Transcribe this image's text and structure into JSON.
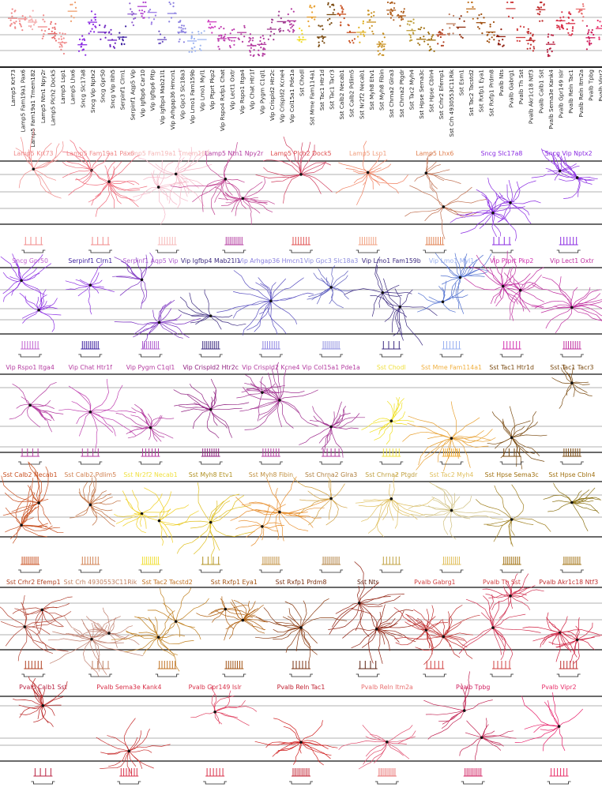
{
  "colors": {
    "lamp5": "#f08a8a",
    "sncg": "#8a2be2",
    "serpinf1": "#3c1ea0",
    "vip_light": "#9a7be6",
    "vip": "#b43ca0",
    "vip_pink": "#e040c8",
    "sst_yellow": "#f0dc28",
    "sst_orange": "#e88c28",
    "sst_brown": "#7a4a10",
    "sst_dark": "#5a2a0a",
    "pvalb": "#d83048",
    "pvalb_pink": "#e8306a"
  },
  "top_panel": {
    "x_labels": [
      "Lamp5 Krt73",
      "Lamp5 Fam19a1 Pax6",
      "Lamp5 Fam19a1 Tmem182",
      "Lamp5 Ntn1 Npy2r",
      "Lamp5 Plch2 Dock5",
      "Lamp5 Lsp1",
      "Lamp5 Lhx6",
      "Sncg Slc17a8",
      "Sncg Vip Nptx2",
      "Sncg Gpr50",
      "Sncg Vip Itih5",
      "Serpinf1 Clrn1",
      "Serpinf1 Aqp5 Vip",
      "Vip Igfbp6 Car10",
      "Vip Igfbp6 Pltp",
      "Vip Igfbp4 Mab21l1",
      "Vip Arhgap36 Hmcn1",
      "Vip Gpc3 Slc18a3",
      "Vip Lmo1 Fam159b",
      "Vip Lmo1 Myl1",
      "Vip Ptprt Pkp2",
      "Vip Rspo4 Rxfp1 Chat",
      "Vip Lect1 Oxtr",
      "Vip Rspo1 Itga4",
      "Vip Chat Htr1f",
      "Vip Pygm C1ql1",
      "Vip Crispld2 Htr2c",
      "Vip Crispld2 Kcne4",
      "Vip Col15a1 Pde1a",
      "Sst Chodl",
      "Sst Mme Fam114a1",
      "Sst Tac1 Htr1d",
      "Sst Tac1 Tacr3",
      "Sst Calb2 Necab1",
      "Sst Calb2 Pdlim5",
      "Sst Nr2f2 Necab1",
      "Sst Myh8 Etv1",
      "Sst Myh8 Fibin",
      "Sst Chrna2 Glra3",
      "Sst Chrna2 Ptgdr",
      "Sst Tac2 Myh4",
      "Sst Hpse Sema3c",
      "Sst Hpse Cbln4",
      "Sst Crhr2 Efemp1",
      "Sst Crh 4930553C11Rik",
      "Sst Esm1",
      "Sst Tac2 Tacstd2",
      "Sst Rxfp1 Eya1",
      "Sst Rxfp1 Prdm8",
      "Pvalb Nts",
      "Pvalb Gabrg1",
      "Pvalb Th Sst",
      "Pvalb Akr1c18 Ntf3",
      "Pvalb Calb1 Sst",
      "Pvalb Sema3e Kank4",
      "Pvalb Gpr149 Islr",
      "Pvalb Reln Tac1",
      "Pvalb Reln Itm2a",
      "Pvalb Tpbg",
      "Pvalb Vipr2"
    ],
    "label_colors": [
      "#f08a8a",
      "#f08a8a",
      "#f5b0b0",
      "#f08a8a",
      "#e86a6a",
      "#f08a8a",
      "#f0a070",
      "#8a2be2",
      "#8a2be2",
      "#6a20c0",
      "#6a20c0",
      "#3c1ea0",
      "#9060d0",
      "#b040d0",
      "#9a7be6",
      "#6a50c0",
      "#8a80e0",
      "#8a80e0",
      "#9ab0f0",
      "#a0b8f0",
      "#d040c0",
      "#c040b0",
      "#c040b0",
      "#b43ca0",
      "#b43ca0",
      "#b43ca0",
      "#a03c90",
      "#a03c90",
      "#b43ca0",
      "#f0dc28",
      "#e8a030",
      "#7a4a10",
      "#7a4a10",
      "#c85020",
      "#c85020",
      "#e0b020",
      "#c89020",
      "#c89020",
      "#b06020",
      "#b06020",
      "#c0a040",
      "#a07010",
      "#a07010",
      "#b04020",
      "#c08060",
      "#903010",
      "#c07020",
      "#a05010",
      "#a05010",
      "#902010",
      "#d04040",
      "#d04040",
      "#c03030",
      "#c03030",
      "#b82040",
      "#d83048",
      "#d83048",
      "#e87070",
      "#d02060",
      "#e8306a"
    ]
  },
  "cell_types": [
    {
      "row": 0,
      "name": "Lamp5 Krt73",
      "color": "#f08a8a",
      "morph": "#f08a8a"
    },
    {
      "row": 0,
      "name": "Lamp5 Fam19a1 Pax6",
      "color": "#f08a8a",
      "morph": "#f06a7a"
    },
    {
      "row": 0,
      "name": "Lamp5 Fam19a1 Tmem182",
      "color": "#f5b8b8",
      "morph": "#f5b8c8"
    },
    {
      "row": 0,
      "name": "Lamp5 Ntn1 Npy2r",
      "color": "#b43ca0",
      "morph": "#c04090"
    },
    {
      "row": 0,
      "name": "Lamp5 Plch2 Dock5",
      "color": "#e05050",
      "morph": "#d04060"
    },
    {
      "row": 0,
      "name": "Lamp5 Lsp1",
      "color": "#f0a080",
      "morph": "#f08060"
    },
    {
      "row": 0,
      "name": "Lamp5 Lhx6",
      "color": "#e08050",
      "morph": "#c07050"
    },
    {
      "row": 0,
      "name": "Sncg Slc17a8",
      "color": "#8a2be2",
      "morph": "#8a2be2"
    },
    {
      "row": 0,
      "name": "Sncg Vip Nptx2",
      "color": "#8a2be2",
      "morph": "#8a2be2"
    },
    {
      "row": 1,
      "name": "Sncg Gpr50",
      "color": "#c060d0",
      "morph": "#8a2be2"
    },
    {
      "row": 1,
      "name": "Serpinf1 Clrn1",
      "color": "#3c1ea0",
      "morph": "#8a2be2"
    },
    {
      "row": 1,
      "name": "Serpinf1 Aqp5 Vip",
      "color": "#b060d0",
      "morph": "#7a30c0"
    },
    {
      "row": 1,
      "name": "Vip Igfbp4 Mab21l1",
      "color": "#3c2a80",
      "morph": "#3c2a80"
    },
    {
      "row": 1,
      "name": "Vip Arhgap36 Hmcn1",
      "color": "#8a80e0",
      "morph": "#5a50c0"
    },
    {
      "row": 1,
      "name": "Vip Gpc3 Slc18a3",
      "color": "#9090e0",
      "morph": "#6060c0"
    },
    {
      "row": 1,
      "name": "Vip Lmo1 Fam159b",
      "color": "#3c2a80",
      "morph": "#3c2a80"
    },
    {
      "row": 1,
      "name": "Vip Lmo1 Myl1",
      "color": "#9ab0f0",
      "morph": "#5070d0"
    },
    {
      "row": 1,
      "name": "Vip Ptprt Pkp2",
      "color": "#d030b0",
      "morph": "#c030a0"
    },
    {
      "row": 1,
      "name": "Vip Lect1 Oxtr",
      "color": "#c030a0",
      "morph": "#c030a0"
    },
    {
      "row": 2,
      "name": "Vip Rspo1 Itga4",
      "color": "#b43ca0",
      "morph": "#b43ca0"
    },
    {
      "row": 2,
      "name": "Vip Chat Htr1f",
      "color": "#b43ca0",
      "morph": "#c040b0"
    },
    {
      "row": 2,
      "name": "Vip Pygm C1ql1",
      "color": "#b43ca0",
      "morph": "#b43ca0"
    },
    {
      "row": 2,
      "name": "Vip Crispld2 Htr2c",
      "color": "#902080",
      "morph": "#902080"
    },
    {
      "row": 2,
      "name": "Vip Crispld2 Kcne4",
      "color": "#b43ca0",
      "morph": "#a03090"
    },
    {
      "row": 2,
      "name": "Vip Col15a1 Pde1a",
      "color": "#b43ca0",
      "morph": "#a03090"
    },
    {
      "row": 2,
      "name": "Sst Chodl",
      "color": "#f0e040",
      "morph": "#f0e020"
    },
    {
      "row": 2,
      "name": "Sst Mme Fam114a1",
      "color": "#f0b040",
      "morph": "#e8a030"
    },
    {
      "row": 2,
      "name": "Sst Tac1 Htr1d",
      "color": "#7a4a10",
      "morph": "#7a4a10"
    },
    {
      "row": 2,
      "name": "Sst Tac1 Tacr3",
      "color": "#7a4a10",
      "morph": "#7a4a10"
    },
    {
      "row": 3,
      "name": "Sst Calb2 Necab1",
      "color": "#c85020",
      "morph": "#c85020"
    },
    {
      "row": 3,
      "name": "Sst Calb2 Pdlim5",
      "color": "#d08050",
      "morph": "#c07040"
    },
    {
      "row": 3,
      "name": "Sst Nr2f2 Necab1",
      "color": "#f0e040",
      "morph": "#f0d020"
    },
    {
      "row": 3,
      "name": "Sst Myh8 Etv1",
      "color": "#b09020",
      "morph": "#e0c020"
    },
    {
      "row": 3,
      "name": "Sst Myh8 Fibin",
      "color": "#c09040",
      "morph": "#e89030"
    },
    {
      "row": 3,
      "name": "Sst Chrna2 Glra3",
      "color": "#b08040",
      "morph": "#d0a040"
    },
    {
      "row": 3,
      "name": "Sst Chrna2 Ptgdr",
      "color": "#c0a040",
      "morph": "#e0c060"
    },
    {
      "row": 3,
      "name": "Sst Tac2 Myh4",
      "color": "#e0c060",
      "morph": "#d0c080"
    },
    {
      "row": 3,
      "name": "Sst Hpse Sema3c",
      "color": "#a07010",
      "morph": "#a08020"
    },
    {
      "row": 3,
      "name": "Sst Hpse Cbln4",
      "color": "#a07010",
      "morph": "#8a7010"
    },
    {
      "row": 4,
      "name": "Sst Crhr2 Efemp1",
      "color": "#b04020",
      "morph": "#b04030"
    },
    {
      "row": 4,
      "name": "Sst Crh 4930553C11Rik",
      "color": "#c08060",
      "morph": "#c08070"
    },
    {
      "row": 4,
      "name": "Sst Tac2 Tacstd2",
      "color": "#c07020",
      "morph": "#c08020"
    },
    {
      "row": 4,
      "name": "Sst Rxfp1 Eya1",
      "color": "#a05010",
      "morph": "#b06010"
    },
    {
      "row": 4,
      "name": "Sst Rxfp1 Prdm8",
      "color": "#7a3010",
      "morph": "#8a3a10"
    },
    {
      "row": 4,
      "name": "Sst Nts",
      "color": "#5a2010",
      "morph": "#902010"
    },
    {
      "row": 4,
      "name": "Pvalb Gabrg1",
      "color": "#d04040",
      "morph": "#c03030"
    },
    {
      "row": 4,
      "name": "Pvalb Th Sst",
      "color": "#d04040",
      "morph": "#d03050"
    },
    {
      "row": 4,
      "name": "Pvalb Akr1c18 Ntf3",
      "color": "#c03030",
      "morph": "#d02040"
    },
    {
      "row": 5,
      "name": "Pvalb Calb1 Sst",
      "color": "#b82040",
      "morph": "#b82020"
    },
    {
      "row": 5,
      "name": "Pvalb Sema3e Kank4",
      "color": "#d83048",
      "morph": "#c83030"
    },
    {
      "row": 5,
      "name": "Pvalb Gpr149 Islr",
      "color": "#d83048",
      "morph": "#e04060"
    },
    {
      "row": 5,
      "name": "Pvalb Reln Tac1",
      "color": "#c02030",
      "morph": "#d02020"
    },
    {
      "row": 5,
      "name": "Pvalb Reln Itm2a",
      "color": "#e87070",
      "morph": "#e05070"
    },
    {
      "row": 5,
      "name": "Pvalb Tpbg",
      "color": "#d02060",
      "morph": "#c02050"
    },
    {
      "row": 5,
      "name": "Pvalb Vipr2",
      "color": "#e8306a",
      "morph": "#e8206a"
    }
  ]
}
